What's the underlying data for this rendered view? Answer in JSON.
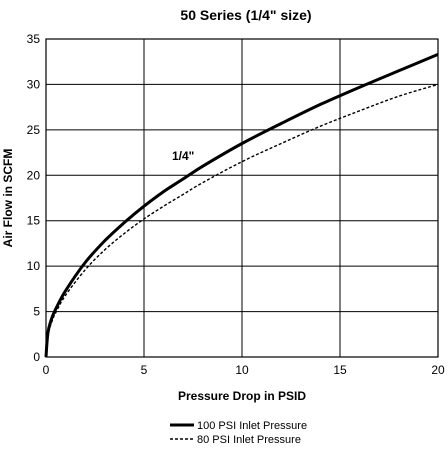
{
  "chart_data": {
    "type": "line",
    "title": "50 Series (1/4\" size)",
    "xlabel": "Pressure Drop in PSID",
    "ylabel": "Air Flow in SCFM",
    "xlim": [
      0,
      20
    ],
    "ylim": [
      0,
      35
    ],
    "x_ticks": [
      "0",
      "5",
      "10",
      "15",
      "20"
    ],
    "y_ticks": [
      "0",
      "5",
      "10",
      "15",
      "20",
      "25",
      "30",
      "35"
    ],
    "grid": true,
    "legend_position": "bottom",
    "annotation": "1/4\"",
    "series": [
      {
        "name": "100 PSI Inlet Pressure",
        "style": "solid",
        "x": [
          0,
          0.1,
          0.3,
          0.5,
          1,
          2,
          3,
          4,
          5,
          6,
          7,
          8,
          10,
          12,
          14,
          16,
          18,
          20
        ],
        "y": [
          0,
          2.7,
          4.3,
          5.3,
          7.3,
          10.4,
          12.8,
          14.8,
          16.6,
          18.2,
          19.6,
          21.0,
          23.5,
          25.7,
          27.8,
          29.7,
          31.5,
          33.3
        ]
      },
      {
        "name": "80 PSI Inlet Pressure",
        "style": "dashed",
        "x": [
          0,
          0.1,
          0.3,
          0.5,
          1,
          2,
          3,
          4,
          5,
          6,
          7,
          8,
          10,
          12,
          14,
          16,
          18,
          20
        ],
        "y": [
          0,
          2.4,
          3.9,
          4.9,
          6.8,
          9.6,
          11.8,
          13.6,
          15.2,
          16.6,
          17.9,
          19.2,
          21.5,
          23.5,
          25.4,
          27.1,
          28.7,
          30.0
        ]
      }
    ]
  }
}
